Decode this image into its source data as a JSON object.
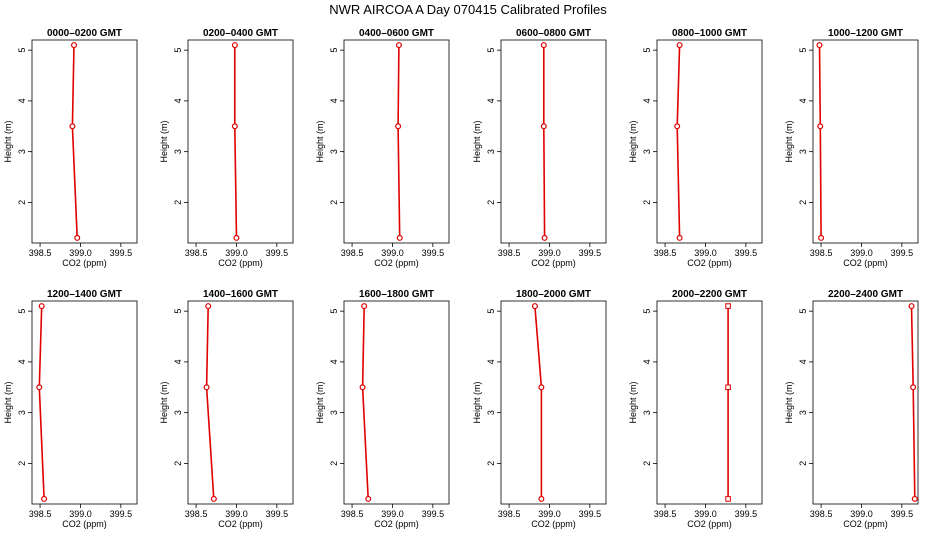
{
  "title": "NWR AIRCOA A  Day 070415  Calibrated Profiles",
  "chart_data": {
    "type": "line",
    "xlabel": "CO2 (ppm)",
    "ylabel": "Height (m)",
    "xlim": [
      398.4,
      399.7
    ],
    "ylim": [
      1.2,
      5.2
    ],
    "xticks": [
      "398.5",
      "399.0",
      "399.5"
    ],
    "yticks": [
      "2",
      "3",
      "4",
      "5"
    ],
    "line_color": "#e00000",
    "panels": [
      {
        "title": "0000–0200 GMT",
        "marker": "circle",
        "points": [
          {
            "co2": 398.92,
            "height": 5.1
          },
          {
            "co2": 398.9,
            "height": 3.5
          },
          {
            "co2": 398.96,
            "height": 1.3
          }
        ]
      },
      {
        "title": "0200–0400 GMT",
        "marker": "circle",
        "points": [
          {
            "co2": 398.98,
            "height": 5.1
          },
          {
            "co2": 398.98,
            "height": 3.5
          },
          {
            "co2": 399.0,
            "height": 1.3
          }
        ]
      },
      {
        "title": "0400–0600 GMT",
        "marker": "circle",
        "points": [
          {
            "co2": 399.08,
            "height": 5.1
          },
          {
            "co2": 399.07,
            "height": 3.5
          },
          {
            "co2": 399.09,
            "height": 1.3
          }
        ]
      },
      {
        "title": "0600–0800 GMT",
        "marker": "circle",
        "points": [
          {
            "co2": 398.93,
            "height": 5.1
          },
          {
            "co2": 398.93,
            "height": 3.5
          },
          {
            "co2": 398.94,
            "height": 1.3
          }
        ]
      },
      {
        "title": "0800–1000 GMT",
        "marker": "circle",
        "points": [
          {
            "co2": 398.68,
            "height": 5.1
          },
          {
            "co2": 398.65,
            "height": 3.5
          },
          {
            "co2": 398.68,
            "height": 1.3
          }
        ]
      },
      {
        "title": "1000–1200 GMT",
        "marker": "circle",
        "points": [
          {
            "co2": 398.48,
            "height": 5.1
          },
          {
            "co2": 398.49,
            "height": 3.5
          },
          {
            "co2": 398.5,
            "height": 1.3
          }
        ]
      },
      {
        "title": "1200–1400 GMT",
        "marker": "circle",
        "points": [
          {
            "co2": 398.52,
            "height": 5.1
          },
          {
            "co2": 398.49,
            "height": 3.5
          },
          {
            "co2": 398.55,
            "height": 1.3
          }
        ]
      },
      {
        "title": "1400–1600 GMT",
        "marker": "circle",
        "points": [
          {
            "co2": 398.65,
            "height": 5.1
          },
          {
            "co2": 398.63,
            "height": 3.5
          },
          {
            "co2": 398.72,
            "height": 1.3
          }
        ]
      },
      {
        "title": "1600–1800 GMT",
        "marker": "circle",
        "points": [
          {
            "co2": 398.65,
            "height": 5.1
          },
          {
            "co2": 398.63,
            "height": 3.5
          },
          {
            "co2": 398.7,
            "height": 1.3
          }
        ]
      },
      {
        "title": "1800–2000 GMT",
        "marker": "circle",
        "points": [
          {
            "co2": 398.82,
            "height": 5.1
          },
          {
            "co2": 398.9,
            "height": 3.5
          },
          {
            "co2": 398.9,
            "height": 1.3
          }
        ]
      },
      {
        "title": "2000–2200 GMT",
        "marker": "square",
        "points": [
          {
            "co2": 399.28,
            "height": 5.1
          },
          {
            "co2": 399.28,
            "height": 3.5
          },
          {
            "co2": 399.28,
            "height": 1.3
          }
        ]
      },
      {
        "title": "2200–2400 GMT",
        "marker": "circle",
        "points": [
          {
            "co2": 399.62,
            "height": 5.1
          },
          {
            "co2": 399.64,
            "height": 3.5
          },
          {
            "co2": 399.66,
            "height": 1.3
          }
        ]
      }
    ]
  }
}
